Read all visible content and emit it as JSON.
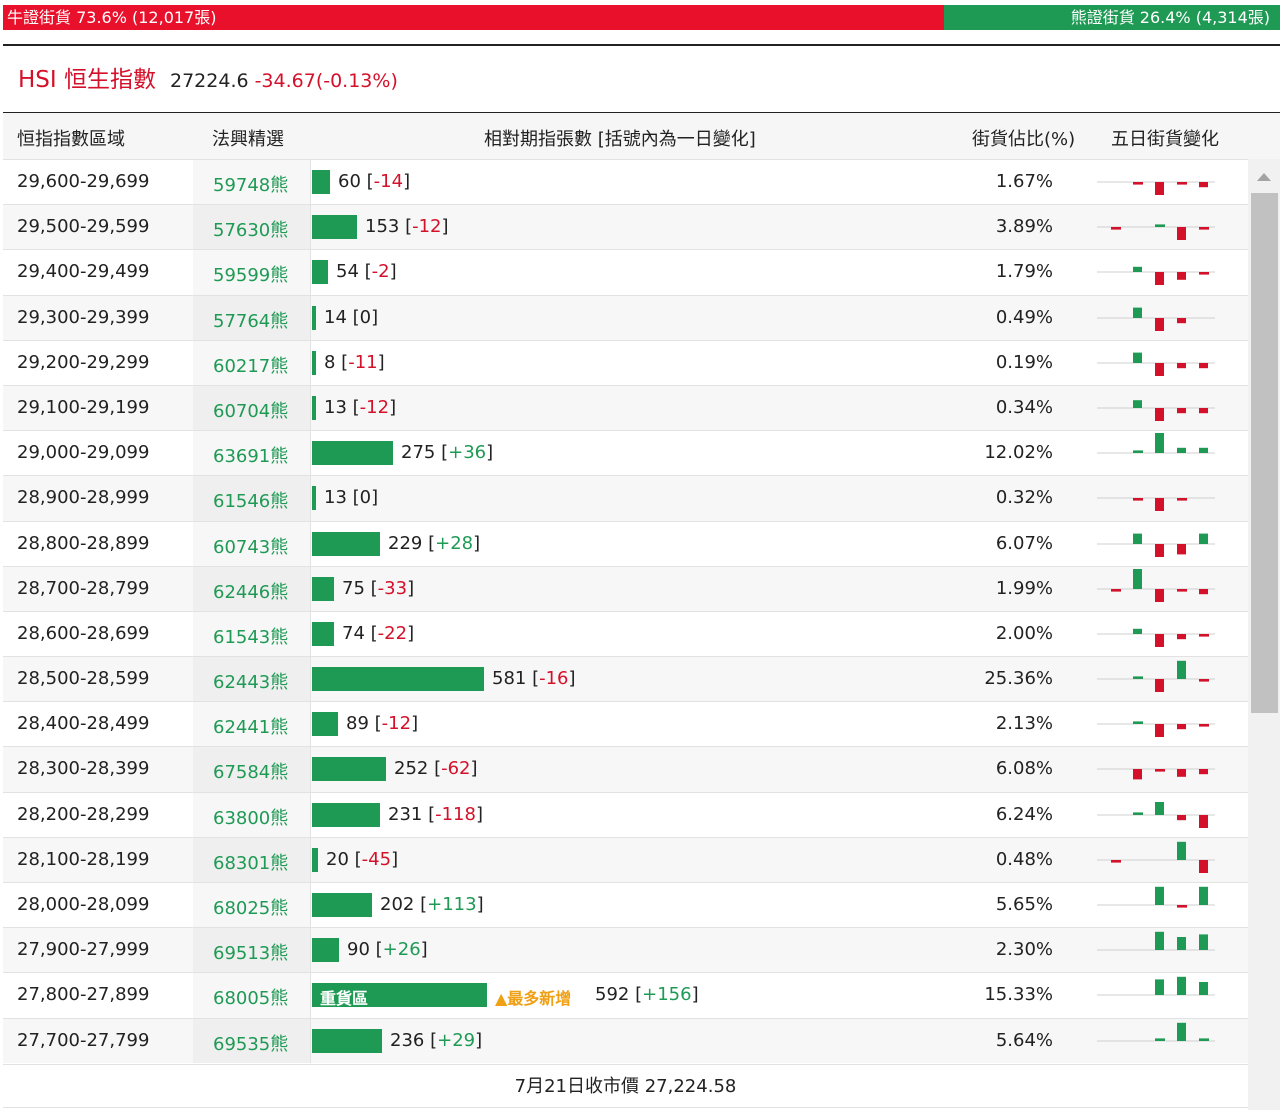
{
  "ratio": {
    "bull_label": "牛證街貨 73.6% (12,017張)",
    "bear_label": "熊證街貨 26.4% (4,314張)",
    "bull_share": 0.736
  },
  "index": {
    "name": "HSI 恒生指數",
    "price": "27224.6",
    "change": "-34.67(-0.13%)"
  },
  "columns": {
    "range": "恒指指數區域",
    "pick": "法興精選",
    "contracts": "相對期指張數 [括號內為一日變化]",
    "share": "街貨佔比(%)",
    "five_day": "五日街貨變化"
  },
  "colors": {
    "up": "#1f9a55",
    "down": "#d4112a",
    "hot": "#f0a014"
  },
  "rows": [
    {
      "range": "29,600-29,699",
      "code": "59748熊",
      "count": 60,
      "count_text": "60",
      "change": "-14",
      "share": "1.67%",
      "five_day": [
        0,
        -1,
        -5,
        -1,
        -2
      ]
    },
    {
      "range": "29,500-29,599",
      "code": "57630熊",
      "count": 153,
      "count_text": "153",
      "change": "-12",
      "share": "3.89%",
      "five_day": [
        -1,
        0,
        1,
        -5,
        -1
      ]
    },
    {
      "range": "29,400-29,499",
      "code": "59599熊",
      "count": 54,
      "count_text": "54",
      "change": "-2",
      "share": "1.79%",
      "five_day": [
        0,
        2,
        -5,
        -3,
        -1
      ]
    },
    {
      "range": "29,300-29,399",
      "code": "57764熊",
      "count": 14,
      "count_text": "14",
      "change": "0",
      "share": "0.49%",
      "five_day": [
        0,
        4,
        -5,
        -2,
        0
      ]
    },
    {
      "range": "29,200-29,299",
      "code": "60217熊",
      "count": 8,
      "count_text": "8",
      "change": "-11",
      "share": "0.19%",
      "five_day": [
        0,
        4,
        -5,
        -2,
        -2
      ]
    },
    {
      "range": "29,100-29,199",
      "code": "60704熊",
      "count": 13,
      "count_text": "13",
      "change": "-12",
      "share": "0.34%",
      "five_day": [
        0,
        3,
        -5,
        -2,
        -2
      ]
    },
    {
      "range": "29,000-29,099",
      "code": "63691熊",
      "count": 275,
      "count_text": "275",
      "change": "+36",
      "share": "12.02%",
      "five_day": [
        0,
        1,
        8,
        2,
        2
      ]
    },
    {
      "range": "28,900-28,999",
      "code": "61546熊",
      "count": 13,
      "count_text": "13",
      "change": "0",
      "share": "0.32%",
      "five_day": [
        0,
        -1,
        -5,
        -1,
        0
      ]
    },
    {
      "range": "28,800-28,899",
      "code": "60743熊",
      "count": 229,
      "count_text": "229",
      "change": "+28",
      "share": "6.07%",
      "five_day": [
        0,
        4,
        -5,
        -4,
        4
      ]
    },
    {
      "range": "28,700-28,799",
      "code": "62446熊",
      "count": 75,
      "count_text": "75",
      "change": "-33",
      "share": "1.99%",
      "five_day": [
        -1,
        8,
        -5,
        -1,
        -2
      ]
    },
    {
      "range": "28,600-28,699",
      "code": "61543熊",
      "count": 74,
      "count_text": "74",
      "change": "-22",
      "share": "2.00%",
      "five_day": [
        0,
        2,
        -5,
        -2,
        -1
      ]
    },
    {
      "range": "28,500-28,599",
      "code": "62443熊",
      "count": 581,
      "count_text": "581",
      "change": "-16",
      "share": "25.36%",
      "five_day": [
        0,
        1,
        -5,
        7,
        -1
      ]
    },
    {
      "range": "28,400-28,499",
      "code": "62441熊",
      "count": 89,
      "count_text": "89",
      "change": "-12",
      "share": "2.13%",
      "five_day": [
        0,
        1,
        -5,
        -2,
        -1
      ]
    },
    {
      "range": "28,300-28,399",
      "code": "67584熊",
      "count": 252,
      "count_text": "252",
      "change": "-62",
      "share": "6.08%",
      "five_day": [
        0,
        -4,
        -1,
        -3,
        -2
      ]
    },
    {
      "range": "28,200-28,299",
      "code": "63800熊",
      "count": 231,
      "count_text": "231",
      "change": "-118",
      "share": "6.24%",
      "five_day": [
        0,
        1,
        5,
        -2,
        -5
      ]
    },
    {
      "range": "28,100-28,199",
      "code": "68301熊",
      "count": 20,
      "count_text": "20",
      "change": "-45",
      "share": "0.48%",
      "five_day": [
        -1,
        0,
        0,
        7,
        -5
      ]
    },
    {
      "range": "28,000-28,099",
      "code": "68025熊",
      "count": 202,
      "count_text": "202",
      "change": "+113",
      "share": "5.65%",
      "five_day": [
        0,
        0,
        7,
        -1,
        7
      ]
    },
    {
      "range": "27,900-27,999",
      "code": "69513熊",
      "count": 90,
      "count_text": "90",
      "change": "+26",
      "share": "2.30%",
      "five_day": [
        0,
        0,
        7,
        5,
        6
      ]
    },
    {
      "range": "27,800-27,899",
      "code": "68005熊",
      "count": 592,
      "count_text": "592",
      "change": "+156",
      "share": "15.33%",
      "five_day": [
        0,
        0,
        6,
        7,
        5
      ],
      "bar_label": "重貨區",
      "hot_label": "▲最多新增"
    },
    {
      "range": "27,700-27,799",
      "code": "69535熊",
      "count": 236,
      "count_text": "236",
      "change": "+29",
      "share": "5.64%",
      "five_day": [
        0,
        0,
        1,
        7,
        1
      ]
    }
  ],
  "footer": "7月21日收市價 27,224.58"
}
